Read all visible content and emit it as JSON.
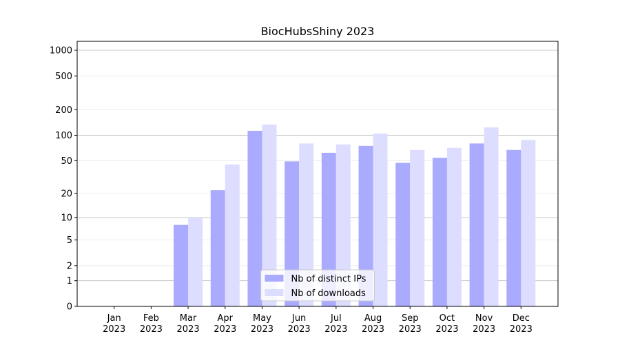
{
  "chart_data": {
    "type": "bar",
    "title": "BiocHubsShiny 2023",
    "categories": [
      [
        "Jan",
        "2023"
      ],
      [
        "Feb",
        "2023"
      ],
      [
        "Mar",
        "2023"
      ],
      [
        "Apr",
        "2023"
      ],
      [
        "May",
        "2023"
      ],
      [
        "Jun",
        "2023"
      ],
      [
        "Jul",
        "2023"
      ],
      [
        "Aug",
        "2023"
      ],
      [
        "Sep",
        "2023"
      ],
      [
        "Oct",
        "2023"
      ],
      [
        "Nov",
        "2023"
      ],
      [
        "Dec",
        "2023"
      ]
    ],
    "series": [
      {
        "name": "Nb of distinct IPs",
        "color": "#aaaaff",
        "values": [
          0,
          0,
          8,
          22,
          113,
          49,
          62,
          75,
          47,
          54,
          80,
          67
        ]
      },
      {
        "name": "Nb of downloads",
        "color": "#ddddff",
        "values": [
          0,
          0,
          10,
          45,
          134,
          80,
          78,
          105,
          67,
          71,
          124,
          88
        ]
      }
    ],
    "yscale": "log1p",
    "ylim": [
      0,
      1273
    ],
    "yticks": [
      0,
      1,
      2,
      5,
      10,
      20,
      50,
      100,
      200,
      500,
      1000
    ],
    "grid": true,
    "legend": "lower center"
  }
}
